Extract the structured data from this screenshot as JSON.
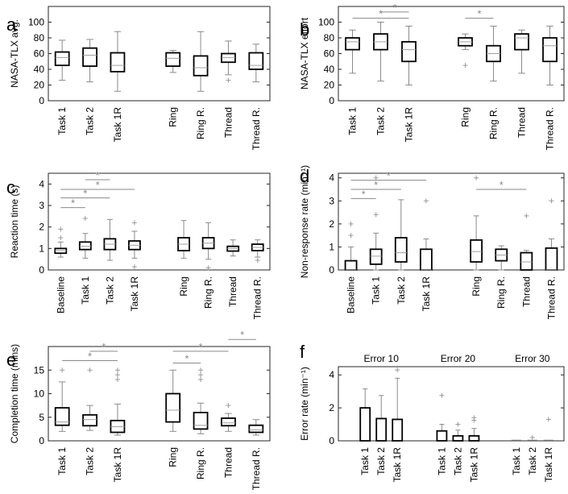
{
  "chart_data": [
    {
      "type": "boxplot",
      "panel": "a",
      "ylabel": "NASA-TLX avg.",
      "ylim": [
        0,
        120
      ],
      "yticks": [
        0,
        20,
        40,
        60,
        80,
        100
      ],
      "categories": [
        "Task 1",
        "Task 2",
        "Task 1R",
        "Ring",
        "Ring R.",
        "Thread",
        "Thread R."
      ],
      "boxes": [
        {
          "label": "Task 1",
          "whisker_low": 26,
          "q1": 45,
          "median": 55,
          "q3": 62,
          "whisker_high": 77,
          "outliers": []
        },
        {
          "label": "Task 2",
          "whisker_low": 24,
          "q1": 44,
          "median": 58,
          "q3": 67,
          "whisker_high": 78,
          "outliers": []
        },
        {
          "label": "Task 1R",
          "whisker_low": 12,
          "q1": 37,
          "median": 45,
          "q3": 61,
          "whisker_high": 88,
          "outliers": []
        },
        {
          "label": "Ring",
          "whisker_low": 36,
          "q1": 44,
          "median": 54,
          "q3": 61,
          "whisker_high": 64,
          "outliers": []
        },
        {
          "label": "Ring R.",
          "whisker_low": 12,
          "q1": 32,
          "median": 42,
          "q3": 57,
          "whisker_high": 88,
          "outliers": []
        },
        {
          "label": "Thread",
          "whisker_low": 33,
          "q1": 49,
          "median": 55,
          "q3": 60,
          "whisker_high": 76,
          "outliers": [
            26
          ]
        },
        {
          "label": "Thread R.",
          "whisker_low": 24,
          "q1": 40,
          "median": 45,
          "q3": 61,
          "whisker_high": 72,
          "outliers": []
        }
      ],
      "significance": []
    },
    {
      "type": "boxplot",
      "panel": "b",
      "ylabel": "NASA-TLX effort",
      "ylim": [
        0,
        120
      ],
      "yticks": [
        0,
        20,
        40,
        60,
        80,
        100
      ],
      "categories": [
        "Task 1",
        "Task 2",
        "Task 1R",
        "Ring",
        "Ring R.",
        "Thread",
        "Thread R."
      ],
      "boxes": [
        {
          "label": "Task 1",
          "whisker_low": 35,
          "q1": 65,
          "median": 75,
          "q3": 80,
          "whisker_high": 90,
          "outliers": []
        },
        {
          "label": "Task 2",
          "whisker_low": 25,
          "q1": 65,
          "median": 75,
          "q3": 85,
          "whisker_high": 100,
          "outliers": []
        },
        {
          "label": "Task 1R",
          "whisker_low": 20,
          "q1": 50,
          "median": 65,
          "q3": 75,
          "whisker_high": 95,
          "outliers": []
        },
        {
          "label": "Ring",
          "whisker_low": 65,
          "q1": 70,
          "median": 75,
          "q3": 80,
          "whisker_high": 85,
          "outliers": [
            45
          ]
        },
        {
          "label": "Ring R.",
          "whisker_low": 25,
          "q1": 50,
          "median": 60,
          "q3": 70,
          "whisker_high": 95,
          "outliers": []
        },
        {
          "label": "Thread",
          "whisker_low": 35,
          "q1": 65,
          "median": 80,
          "q3": 85,
          "whisker_high": 90,
          "outliers": []
        },
        {
          "label": "Thread R.",
          "whisker_low": 20,
          "q1": 50,
          "median": 70,
          "q3": 80,
          "whisker_high": 95,
          "outliers": []
        }
      ],
      "significance": [
        {
          "from": "Task 1",
          "to": "Task 1R",
          "level": 105,
          "label": "*"
        },
        {
          "from": "Task 2",
          "to": "Task 1R",
          "level": 113,
          "label": "*"
        },
        {
          "from": "Ring",
          "to": "Ring R.",
          "level": 105,
          "label": "*"
        }
      ]
    },
    {
      "type": "boxplot",
      "panel": "c",
      "ylabel": "Reaction time (s)",
      "ylim": [
        0,
        4.5
      ],
      "yticks": [
        0,
        1,
        2,
        3,
        4
      ],
      "categories": [
        "Baseline",
        "Task 1",
        "Task 2",
        "Task 1R",
        "Ring",
        "Ring R.",
        "Thread",
        "Thread R."
      ],
      "boxes": [
        {
          "label": "Baseline",
          "whisker_low": 0.6,
          "q1": 0.78,
          "median": 0.9,
          "q3": 1.0,
          "whisker_high": 1.3,
          "outliers": [
            1.5,
            1.9
          ]
        },
        {
          "label": "Task 1",
          "whisker_low": 0.55,
          "q1": 0.95,
          "median": 1.1,
          "q3": 1.3,
          "whisker_high": 1.7,
          "outliers": [
            2.4
          ]
        },
        {
          "label": "Task 2",
          "whisker_low": 0.45,
          "q1": 0.95,
          "median": 1.2,
          "q3": 1.45,
          "whisker_high": 2.35,
          "outliers": []
        },
        {
          "label": "Task 1R",
          "whisker_low": 0.55,
          "q1": 0.95,
          "median": 1.15,
          "q3": 1.35,
          "whisker_high": 1.8,
          "outliers": [
            2.2,
            0.15
          ]
        },
        {
          "label": "Ring",
          "whisker_low": 0.55,
          "q1": 0.9,
          "median": 1.2,
          "q3": 1.5,
          "whisker_high": 2.3,
          "outliers": []
        },
        {
          "label": "Ring R.",
          "whisker_low": 0.5,
          "q1": 1.0,
          "median": 1.25,
          "q3": 1.5,
          "whisker_high": 2.2,
          "outliers": [
            0.1
          ]
        },
        {
          "label": "Thread",
          "whisker_low": 0.65,
          "q1": 0.88,
          "median": 1.0,
          "q3": 1.1,
          "whisker_high": 1.4,
          "outliers": []
        },
        {
          "label": "Thread R.",
          "whisker_low": 0.6,
          "q1": 0.9,
          "median": 1.05,
          "q3": 1.2,
          "whisker_high": 1.4,
          "outliers": [
            0.45
          ]
        }
      ],
      "significance": [
        {
          "from": "Baseline",
          "to": "Task 1",
          "level": 2.9,
          "label": "*"
        },
        {
          "from": "Baseline",
          "to": "Task 2",
          "level": 3.35,
          "label": "*"
        },
        {
          "from": "Baseline",
          "to": "Task 1R",
          "level": 3.75,
          "label": "*"
        },
        {
          "from": "Task 1",
          "to": "Task 2",
          "level": 4.2,
          "label": "*"
        }
      ]
    },
    {
      "type": "boxplot",
      "panel": "d",
      "ylabel": "Non-response rate (min⁻¹)",
      "ylim": [
        0,
        4.2
      ],
      "yticks": [
        0,
        1,
        2,
        3,
        4
      ],
      "categories": [
        "Baseline",
        "Task 1",
        "Task 2",
        "Task 1R",
        "Ring",
        "Ring R.",
        "Thread",
        "Thread R."
      ],
      "boxes": [
        {
          "label": "Baseline",
          "whisker_low": 0,
          "q1": 0,
          "median": 0,
          "q3": 0.4,
          "whisker_high": 1.0,
          "outliers": [
            1.5,
            2.0
          ]
        },
        {
          "label": "Task 1",
          "whisker_low": 0,
          "q1": 0.25,
          "median": 0.6,
          "q3": 0.9,
          "whisker_high": 1.6,
          "outliers": [
            2.4,
            4.0
          ]
        },
        {
          "label": "Task 2",
          "whisker_low": 0,
          "q1": 0.35,
          "median": 0.75,
          "q3": 1.4,
          "whisker_high": 3.05,
          "outliers": []
        },
        {
          "label": "Task 1R",
          "whisker_low": 0,
          "q1": 0,
          "median": 0,
          "q3": 0.9,
          "whisker_high": 1.35,
          "outliers": [
            3.0
          ]
        },
        {
          "label": "Ring",
          "whisker_low": 0,
          "q1": 0.35,
          "median": 0.8,
          "q3": 1.3,
          "whisker_high": 2.35,
          "outliers": [
            4.0
          ]
        },
        {
          "label": "Ring R.",
          "whisker_low": 0,
          "q1": 0.4,
          "median": 0.65,
          "q3": 0.9,
          "whisker_high": 1.05,
          "outliers": []
        },
        {
          "label": "Thread",
          "whisker_low": 0,
          "q1": 0,
          "median": 0.35,
          "q3": 0.75,
          "whisker_high": 0.85,
          "outliers": [
            2.35
          ]
        },
        {
          "label": "Thread R.",
          "whisker_low": 0,
          "q1": 0,
          "median": 0,
          "q3": 0.95,
          "whisker_high": 1.35,
          "outliers": [
            3.0
          ]
        }
      ],
      "significance": [
        {
          "from": "Baseline",
          "to": "Task 1",
          "level": 3.1,
          "label": "*"
        },
        {
          "from": "Baseline",
          "to": "Task 2",
          "level": 3.5,
          "label": "*"
        },
        {
          "from": "Baseline",
          "to": "Task 1R",
          "level": 3.9,
          "label": "*"
        },
        {
          "from": "Ring",
          "to": "Thread",
          "level": 3.5,
          "label": "*"
        }
      ]
    },
    {
      "type": "boxplot",
      "panel": "e",
      "ylabel": "Completion time (mins)",
      "ylim": [
        0,
        20
      ],
      "yticks": [
        0,
        5,
        10,
        15
      ],
      "categories": [
        "Task 1",
        "Task 2",
        "Task 1R",
        "Ring",
        "Ring R.",
        "Thread",
        "Thread R."
      ],
      "boxes": [
        {
          "label": "Task 1",
          "whisker_low": 2,
          "q1": 3.3,
          "median": 4,
          "q3": 7,
          "whisker_high": 12.5,
          "outliers": [
            15
          ]
        },
        {
          "label": "Task 2",
          "whisker_low": 2.2,
          "q1": 3.2,
          "median": 4.5,
          "q3": 5.5,
          "whisker_high": 7.5,
          "outliers": [
            15
          ]
        },
        {
          "label": "Task 1R",
          "whisker_low": 1.2,
          "q1": 1.8,
          "median": 3,
          "q3": 4.3,
          "whisker_high": 7.8,
          "outliers": [
            13,
            14,
            15
          ]
        },
        {
          "label": "Ring",
          "whisker_low": 2,
          "q1": 4,
          "median": 6.5,
          "q3": 10,
          "whisker_high": 15,
          "outliers": []
        },
        {
          "label": "Ring R.",
          "whisker_low": 1.5,
          "q1": 2.5,
          "median": 3.3,
          "q3": 6,
          "whisker_high": 8,
          "outliers": [
            13,
            14,
            15
          ]
        },
        {
          "label": "Thread",
          "whisker_low": 2,
          "q1": 3.2,
          "median": 3.8,
          "q3": 4.8,
          "whisker_high": 5.8,
          "outliers": [
            7.5
          ]
        },
        {
          "label": "Thread R.",
          "whisker_low": 1.2,
          "q1": 1.8,
          "median": 2.3,
          "q3": 3.3,
          "whisker_high": 4.5,
          "outliers": []
        }
      ],
      "significance": [
        {
          "from": "Task 1",
          "to": "Task 1R",
          "level": 17,
          "label": "*"
        },
        {
          "from": "Task 2",
          "to": "Task 1R",
          "level": 19,
          "label": "*"
        },
        {
          "from": "Ring",
          "to": "Ring R.",
          "level": 16.5,
          "label": "*"
        },
        {
          "from": "Ring",
          "to": "Thread",
          "level": 19,
          "label": "*"
        },
        {
          "from": "Thread",
          "to": "Thread R.",
          "level": 21.5,
          "label": "*"
        }
      ]
    },
    {
      "type": "bar",
      "panel": "f",
      "ylabel": "Error rate (min⁻¹)",
      "ylim": [
        0,
        4.5
      ],
      "yticks": [
        0,
        2,
        4
      ],
      "groups": [
        {
          "name": "Error 10",
          "categories": [
            "Task 1",
            "Task 2",
            "Task 1R"
          ],
          "values": [
            2.0,
            1.35,
            1.3
          ],
          "err_low": [
            0,
            0,
            0
          ],
          "err_high": [
            3.15,
            2.75,
            3.8
          ],
          "outliers": [
            [],
            [],
            [
              4.3
            ]
          ]
        },
        {
          "name": "Error 20",
          "categories": [
            "Task 1",
            "Task 2",
            "Task 1R"
          ],
          "values": [
            0.6,
            0.3,
            0.3
          ],
          "err_low": [
            0,
            0,
            0
          ],
          "err_high": [
            1.0,
            0.65,
            0.75
          ],
          "outliers": [
            [
              2.75
            ],
            [
              1.0
            ],
            [
              1.25,
              1.4
            ]
          ]
        },
        {
          "name": "Error 30",
          "categories": [
            "Task 1",
            "Task 2",
            "Task 1R"
          ],
          "values": [
            0,
            0,
            0
          ],
          "err_low": [
            0,
            0,
            0
          ],
          "err_high": [
            0,
            0,
            0
          ],
          "outliers": [
            [],
            [
              0.2
            ],
            [
              1.3
            ]
          ]
        }
      ]
    }
  ],
  "panel_letters": {
    "a": "a",
    "b": "b",
    "c": "c",
    "d": "d",
    "e": "e",
    "f": "f"
  },
  "colors": {
    "box": "#000000",
    "median": "#a0a0a0",
    "whisker": "#8a8a8a",
    "sig": "#8a8a8a",
    "axis": "#262626"
  }
}
